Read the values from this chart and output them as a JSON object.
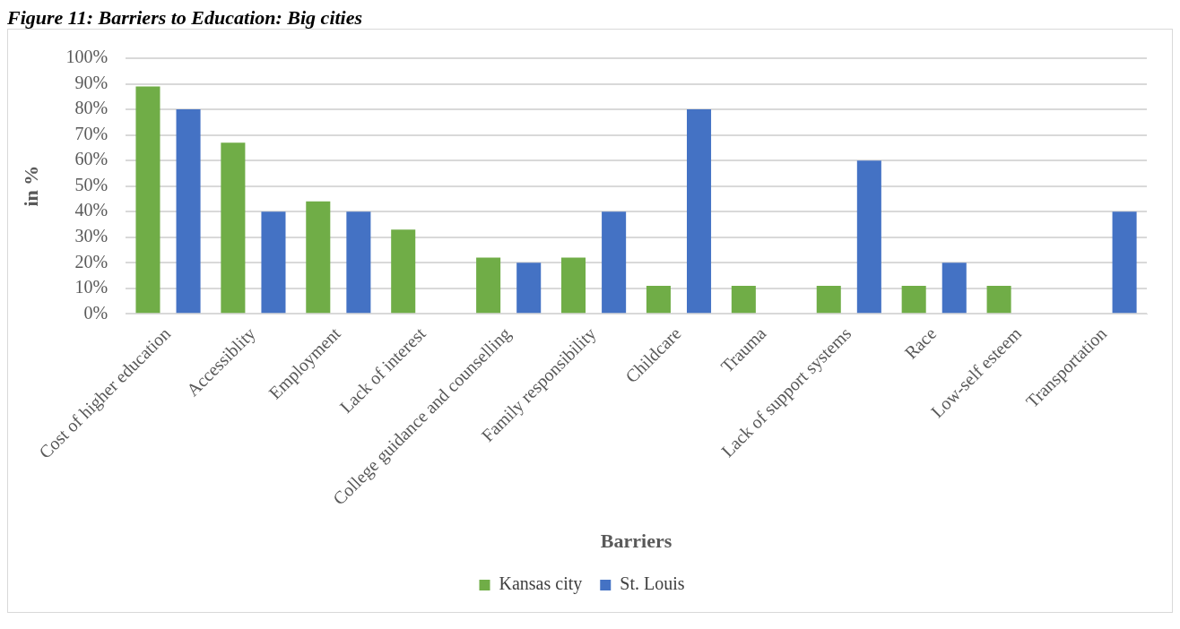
{
  "chart_data": {
    "type": "bar",
    "title": "Figure 11: Barriers to Education: Big cities",
    "xlabel": "Barriers",
    "ylabel": "in %",
    "categories": [
      "Cost of higher education",
      "Accessiblity",
      "Employment",
      "Lack of interest",
      "College guidance and counselling",
      "Family responsibility",
      "Childcare",
      "Trauma",
      "Lack of support systems",
      "Race",
      "Low-self esteem",
      "Transportation"
    ],
    "series": [
      {
        "name": "Kansas city",
        "color": "#70ad47",
        "values": [
          89,
          67,
          44,
          33,
          22,
          22,
          11,
          11,
          11,
          11,
          11,
          0
        ]
      },
      {
        "name": "St. Louis",
        "color": "#4472c4",
        "values": [
          80,
          40,
          40,
          0,
          20,
          40,
          80,
          0,
          60,
          20,
          0,
          40
        ]
      }
    ],
    "ylim": [
      0,
      100
    ],
    "yticks": [
      {
        "value": 0,
        "label": "0%"
      },
      {
        "value": 10,
        "label": "10%"
      },
      {
        "value": 20,
        "label": "20%"
      },
      {
        "value": 30,
        "label": "30%"
      },
      {
        "value": 40,
        "label": "40%"
      },
      {
        "value": 50,
        "label": "50%"
      },
      {
        "value": 60,
        "label": "60%"
      },
      {
        "value": 70,
        "label": "70%"
      },
      {
        "value": 80,
        "label": "80%"
      },
      {
        "value": 90,
        "label": "90%"
      },
      {
        "value": 100,
        "label": "100%"
      }
    ],
    "grid": "y",
    "legend": "bottom"
  }
}
